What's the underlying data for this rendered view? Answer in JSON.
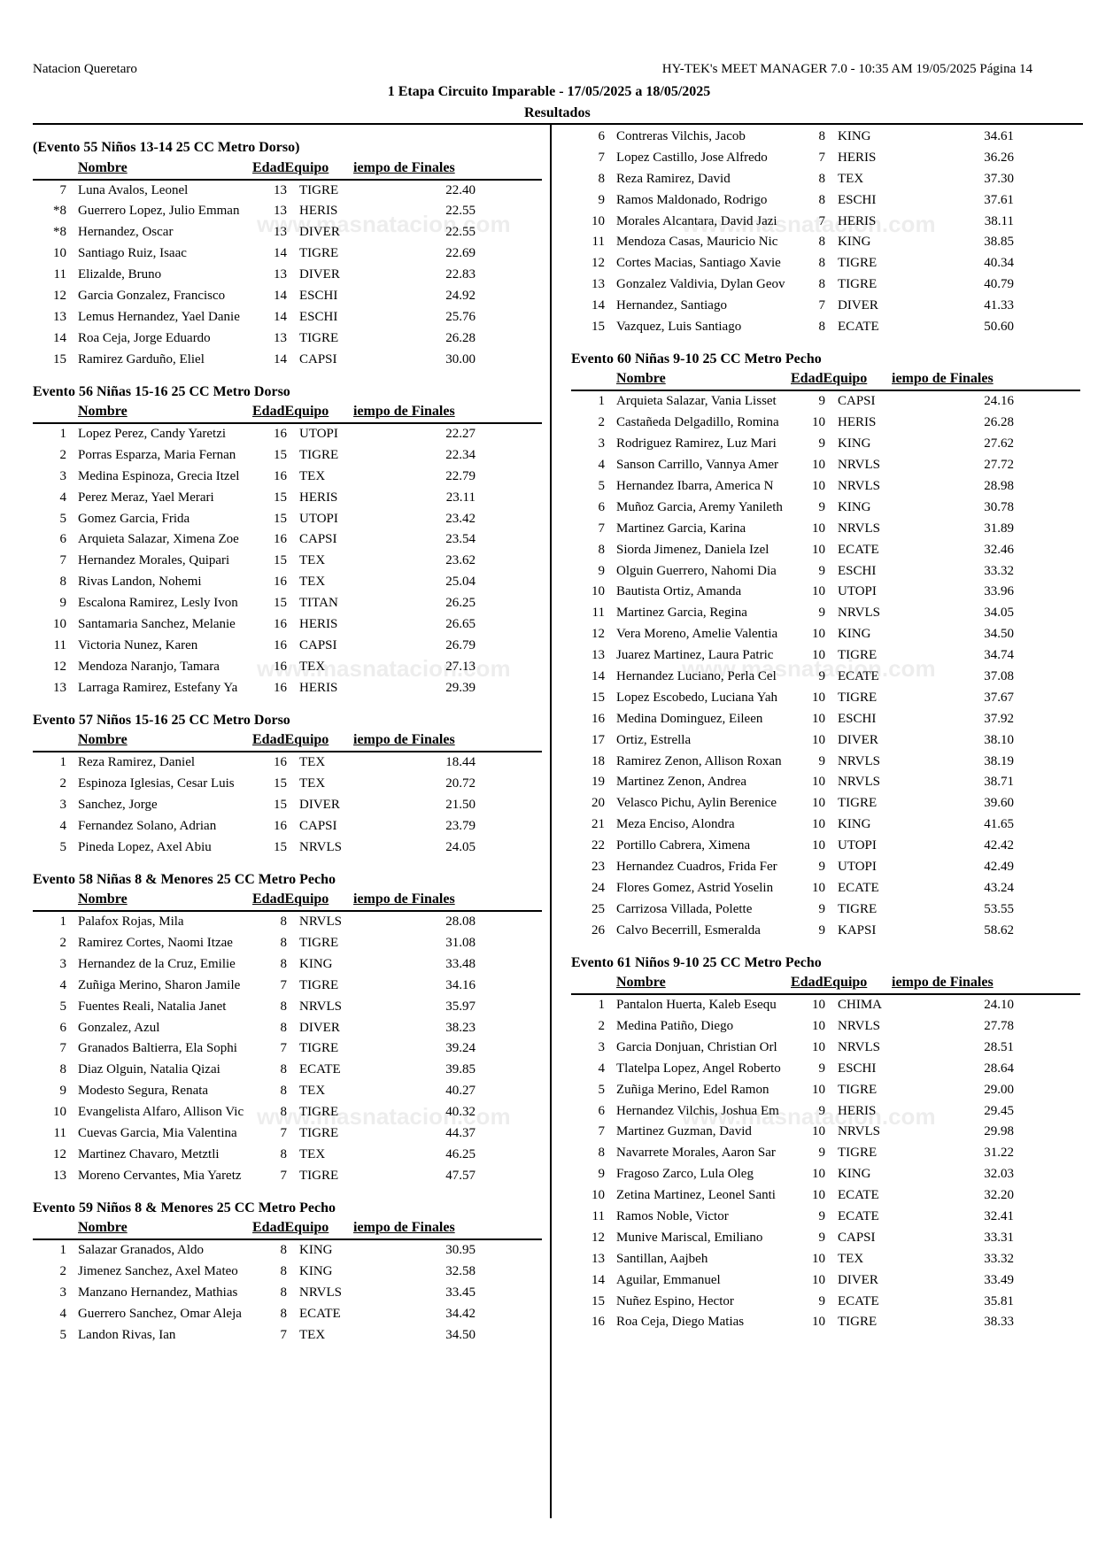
{
  "header": {
    "organization": "Natacion Queretaro",
    "software": "HY-TEK's MEET MANAGER 7.0 - 10:35 AM  19/05/2025  Página 14",
    "meet_title": "1 Etapa Circuito Imparable - 17/05/2025 a 18/05/2025",
    "section": "Resultados"
  },
  "watermark": "www.masnatacion.com",
  "column_headers": {
    "name": "Nombre",
    "age_team": "EdadEquipo",
    "time": "iempo de Finales"
  },
  "left_column": [
    {
      "title": "(Evento 55  Niños 13-14 25 CC Metro Dorso)",
      "rows": [
        [
          "7",
          "Luna Avalos, Leonel",
          "13",
          "TIGRE",
          "22.40"
        ],
        [
          "*8",
          "Guerrero Lopez, Julio Emman",
          "13",
          "HERIS",
          "22.55"
        ],
        [
          "*8",
          "Hernandez, Oscar",
          "13",
          "DIVER",
          "22.55"
        ],
        [
          "10",
          "Santiago Ruiz, Isaac",
          "14",
          "TIGRE",
          "22.69"
        ],
        [
          "11",
          "Elizalde, Bruno",
          "13",
          "DIVER",
          "22.83"
        ],
        [
          "12",
          "Garcia Gonzalez, Francisco",
          "14",
          "ESCHI",
          "24.92"
        ],
        [
          "13",
          "Lemus Hernandez, Yael Danie",
          "14",
          "ESCHI",
          "25.76"
        ],
        [
          "14",
          "Roa Ceja, Jorge Eduardo",
          "13",
          "TIGRE",
          "26.28"
        ],
        [
          "15",
          "Ramirez Garduño, Eliel",
          "14",
          "CAPSI",
          "30.00"
        ]
      ]
    },
    {
      "title": "Evento 56  Niñas 15-16 25 CC Metro Dorso",
      "rows": [
        [
          "1",
          "Lopez Perez, Candy Yaretzi",
          "16",
          "UTOPI",
          "22.27"
        ],
        [
          "2",
          "Porras Esparza, Maria Fernan",
          "15",
          "TIGRE",
          "22.34"
        ],
        [
          "3",
          "Medina Espinoza, Grecia Itzel",
          "16",
          "TEX",
          "22.79"
        ],
        [
          "4",
          "Perez Meraz, Yael Merari",
          "15",
          "HERIS",
          "23.11"
        ],
        [
          "5",
          "Gomez Garcia, Frida",
          "15",
          "UTOPI",
          "23.42"
        ],
        [
          "6",
          "Arquieta Salazar, Ximena Zoe",
          "16",
          "CAPSI",
          "23.54"
        ],
        [
          "7",
          "Hernandez Morales, Quipari",
          "15",
          "TEX",
          "23.62"
        ],
        [
          "8",
          "Rivas Landon, Nohemi",
          "16",
          "TEX",
          "25.04"
        ],
        [
          "9",
          "Escalona Ramirez, Lesly Ivon",
          "15",
          "TITAN",
          "26.25"
        ],
        [
          "10",
          "Santamaria Sanchez, Melanie",
          "16",
          "HERIS",
          "26.65"
        ],
        [
          "11",
          "Victoria Nunez, Karen",
          "16",
          "CAPSI",
          "26.79"
        ],
        [
          "12",
          "Mendoza Naranjo, Tamara",
          "16",
          "TEX",
          "27.13"
        ],
        [
          "13",
          "Larraga Ramirez, Estefany Ya",
          "16",
          "HERIS",
          "29.39"
        ]
      ]
    },
    {
      "title": "Evento 57  Niños 15-16 25 CC Metro Dorso",
      "rows": [
        [
          "1",
          "Reza Ramirez, Daniel",
          "16",
          "TEX",
          "18.44"
        ],
        [
          "2",
          "Espinoza Iglesias, Cesar Luis",
          "15",
          "TEX",
          "20.72"
        ],
        [
          "3",
          "Sanchez, Jorge",
          "15",
          "DIVER",
          "21.50"
        ],
        [
          "4",
          "Fernandez Solano, Adrian",
          "16",
          "CAPSI",
          "23.79"
        ],
        [
          "5",
          "Pineda Lopez, Axel Abiu",
          "15",
          "NRVLS",
          "24.05"
        ]
      ]
    },
    {
      "title": "Evento 58  Niñas 8 & Menores 25 CC Metro Pecho",
      "rows": [
        [
          "1",
          "Palafox Rojas, Mila",
          "8",
          "NRVLS",
          "28.08"
        ],
        [
          "2",
          "Ramirez Cortes, Naomi Itzae",
          "8",
          "TIGRE",
          "31.08"
        ],
        [
          "3",
          "Hernandez de la Cruz, Emilie",
          "8",
          "KING",
          "33.48"
        ],
        [
          "4",
          "Zuñiga Merino, Sharon Jamile",
          "7",
          "TIGRE",
          "34.16"
        ],
        [
          "5",
          "Fuentes Reali, Natalia Janet",
          "8",
          "NRVLS",
          "35.97"
        ],
        [
          "6",
          "Gonzalez, Azul",
          "8",
          "DIVER",
          "38.23"
        ],
        [
          "7",
          "Granados Baltierra, Ela Sophi",
          "7",
          "TIGRE",
          "39.24"
        ],
        [
          "8",
          "Diaz Olguin, Natalia Qizai",
          "8",
          "ECATE",
          "39.85"
        ],
        [
          "9",
          "Modesto Segura, Renata",
          "8",
          "TEX",
          "40.27"
        ],
        [
          "10",
          "Evangelista Alfaro, Allison Vic",
          "8",
          "TIGRE",
          "40.32"
        ],
        [
          "11",
          "Cuevas Garcia, Mia Valentina",
          "7",
          "TIGRE",
          "44.37"
        ],
        [
          "12",
          "Martinez Chavaro, Metztli",
          "8",
          "TEX",
          "46.25"
        ],
        [
          "13",
          "Moreno Cervantes, Mia Yaretz",
          "7",
          "TIGRE",
          "47.57"
        ]
      ]
    },
    {
      "title": "Evento 59  Niños 8 & Menores 25 CC Metro Pecho",
      "rows": [
        [
          "1",
          "Salazar Granados, Aldo",
          "8",
          "KING",
          "30.95"
        ],
        [
          "2",
          "Jimenez Sanchez, Axel Mateo",
          "8",
          "KING",
          "32.58"
        ],
        [
          "3",
          "Manzano Hernandez, Mathias",
          "8",
          "NRVLS",
          "33.45"
        ],
        [
          "4",
          "Guerrero Sanchez, Omar Aleja",
          "8",
          "ECATE",
          "34.42"
        ],
        [
          "5",
          "Landon Rivas, Ian",
          "7",
          "TEX",
          "34.50"
        ]
      ]
    }
  ],
  "right_column": [
    {
      "title": "",
      "rows": [
        [
          "6",
          "Contreras Vilchis, Jacob",
          "8",
          "KING",
          "34.61"
        ],
        [
          "7",
          "Lopez Castillo, Jose Alfredo",
          "7",
          "HERIS",
          "36.26"
        ],
        [
          "8",
          "Reza Ramirez, David",
          "8",
          "TEX",
          "37.30"
        ],
        [
          "9",
          "Ramos Maldonado, Rodrigo",
          "8",
          "ESCHI",
          "37.61"
        ],
        [
          "10",
          "Morales Alcantara, David Jazi",
          "7",
          "HERIS",
          "38.11"
        ],
        [
          "11",
          "Mendoza Casas, Mauricio Nic",
          "8",
          "KING",
          "38.85"
        ],
        [
          "12",
          "Cortes Macias, Santiago Xavie",
          "8",
          "TIGRE",
          "40.34"
        ],
        [
          "13",
          "Gonzalez Valdivia, Dylan Geov",
          "8",
          "TIGRE",
          "40.79"
        ],
        [
          "14",
          "Hernandez, Santiago",
          "7",
          "DIVER",
          "41.33"
        ],
        [
          "15",
          "Vazquez, Luis Santiago",
          "8",
          "ECATE",
          "50.60"
        ]
      ]
    },
    {
      "title": "Evento 60  Niñas 9-10 25 CC Metro Pecho",
      "rows": [
        [
          "1",
          "Arquieta Salazar, Vania Lisset",
          "9",
          "CAPSI",
          "24.16"
        ],
        [
          "2",
          "Castañeda Delgadillo, Romina",
          "10",
          "HERIS",
          "26.28"
        ],
        [
          "3",
          "Rodriguez Ramirez, Luz Mari",
          "9",
          "KING",
          "27.62"
        ],
        [
          "4",
          "Sanson Carrillo, Vannya Amer",
          "10",
          "NRVLS",
          "27.72"
        ],
        [
          "5",
          "Hernandez Ibarra, America N",
          "10",
          "NRVLS",
          "28.98"
        ],
        [
          "6",
          "Muñoz Garcia, Aremy Yanileth",
          "9",
          "KING",
          "30.78"
        ],
        [
          "7",
          "Martinez Garcia, Karina",
          "10",
          "NRVLS",
          "31.89"
        ],
        [
          "8",
          "Siorda Jimenez, Daniela Izel",
          "10",
          "ECATE",
          "32.46"
        ],
        [
          "9",
          "Olguin Guerrero, Nahomi Dia",
          "9",
          "ESCHI",
          "33.32"
        ],
        [
          "10",
          "Bautista Ortiz, Amanda",
          "10",
          "UTOPI",
          "33.96"
        ],
        [
          "11",
          "Martinez Garcia, Regina",
          "9",
          "NRVLS",
          "34.05"
        ],
        [
          "12",
          "Vera Moreno, Amelie Valentia",
          "10",
          "KING",
          "34.50"
        ],
        [
          "13",
          "Juarez Martinez, Laura Patric",
          "10",
          "TIGRE",
          "34.74"
        ],
        [
          "14",
          "Hernandez Luciano, Perla Cel",
          "9",
          "ECATE",
          "37.08"
        ],
        [
          "15",
          "Lopez Escobedo, Luciana Yah",
          "10",
          "TIGRE",
          "37.67"
        ],
        [
          "16",
          "Medina Dominguez, Eileen",
          "10",
          "ESCHI",
          "37.92"
        ],
        [
          "17",
          "Ortiz, Estrella",
          "10",
          "DIVER",
          "38.10"
        ],
        [
          "18",
          "Ramirez Zenon, Allison Roxan",
          "9",
          "NRVLS",
          "38.19"
        ],
        [
          "19",
          "Martinez Zenon, Andrea",
          "10",
          "NRVLS",
          "38.71"
        ],
        [
          "20",
          "Velasco Pichu, Aylin Berenice",
          "10",
          "TIGRE",
          "39.60"
        ],
        [
          "21",
          "Meza Enciso, Alondra",
          "10",
          "KING",
          "41.65"
        ],
        [
          "22",
          "Portillo Cabrera, Ximena",
          "10",
          "UTOPI",
          "42.42"
        ],
        [
          "23",
          "Hernandez Cuadros, Frida Fer",
          "9",
          "UTOPI",
          "42.49"
        ],
        [
          "24",
          "Flores Gomez, Astrid Yoselin",
          "10",
          "ECATE",
          "43.24"
        ],
        [
          "25",
          "Carrizosa Villada, Polette",
          "9",
          "TIGRE",
          "53.55"
        ],
        [
          "26",
          "Calvo Becerrill, Esmeralda",
          "9",
          "KAPSI",
          "58.62"
        ]
      ]
    },
    {
      "title": "Evento 61  Niños 9-10 25 CC Metro Pecho",
      "rows": [
        [
          "1",
          "Pantalon Huerta, Kaleb Esequ",
          "10",
          "CHIMA",
          "24.10"
        ],
        [
          "2",
          "Medina Patiño, Diego",
          "10",
          "NRVLS",
          "27.78"
        ],
        [
          "3",
          "Garcia Donjuan, Christian Orl",
          "10",
          "NRVLS",
          "28.51"
        ],
        [
          "4",
          "Tlatelpa Lopez, Angel Roberto",
          "9",
          "ESCHI",
          "28.64"
        ],
        [
          "5",
          "Zuñiga Merino, Edel Ramon",
          "10",
          "TIGRE",
          "29.00"
        ],
        [
          "6",
          "Hernandez Vilchis, Joshua Em",
          "9",
          "HERIS",
          "29.45"
        ],
        [
          "7",
          "Martinez Guzman, David",
          "10",
          "NRVLS",
          "29.98"
        ],
        [
          "8",
          "Navarrete Morales, Aaron Sar",
          "9",
          "TIGRE",
          "31.22"
        ],
        [
          "9",
          "Fragoso Zarco, Lula Oleg",
          "10",
          "KING",
          "32.03"
        ],
        [
          "10",
          "Zetina Martinez, Leonel Santi",
          "10",
          "ECATE",
          "32.20"
        ],
        [
          "11",
          "Ramos Noble, Victor",
          "9",
          "ECATE",
          "32.41"
        ],
        [
          "12",
          "Munive Mariscal, Emiliano",
          "9",
          "CAPSI",
          "33.31"
        ],
        [
          "13",
          "Santillan, Aajbeh",
          "10",
          "TEX",
          "33.32"
        ],
        [
          "14",
          "Aguilar, Emmanuel",
          "10",
          "DIVER",
          "33.49"
        ],
        [
          "15",
          "Nuñez Espino, Hector",
          "9",
          "ECATE",
          "35.81"
        ],
        [
          "16",
          "Roa Ceja, Diego Matias",
          "10",
          "TIGRE",
          "38.33"
        ]
      ]
    }
  ]
}
